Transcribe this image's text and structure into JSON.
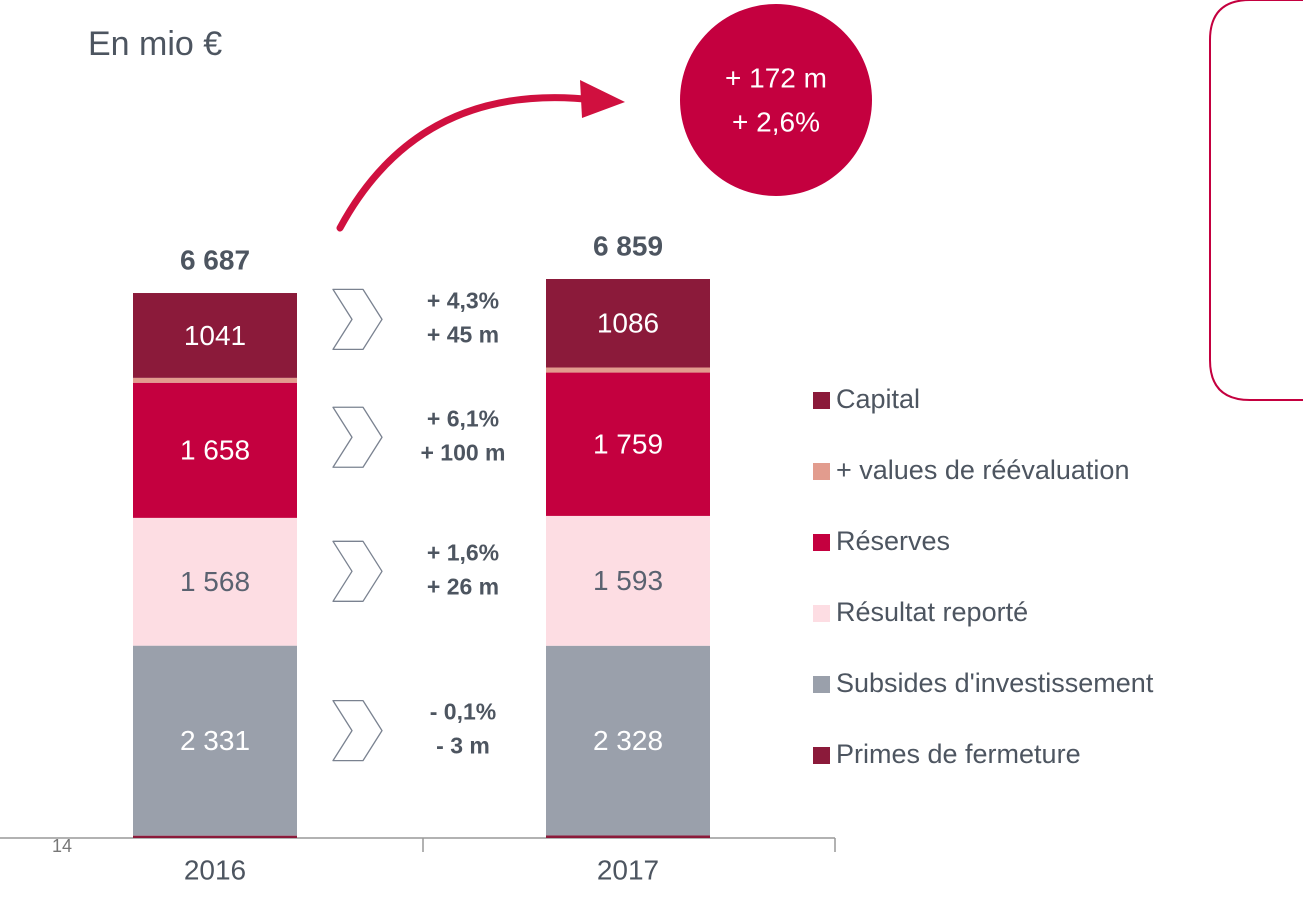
{
  "chart_data": {
    "type": "stacked-bar",
    "subtitle": "En mio €",
    "categories": [
      "2016",
      "2017"
    ],
    "series": [
      {
        "name": "Capital",
        "color": "#8b1a3a",
        "values": [
          1041,
          1086
        ]
      },
      {
        "name": "+ values de réévaluation",
        "color": "#e29c8e",
        "values": [
          60,
          62
        ]
      },
      {
        "name": "Réserves",
        "color": "#c4003f",
        "values": [
          1658,
          1759
        ],
        "value_labels": [
          "1 658",
          "1 759"
        ]
      },
      {
        "name": "Résultat reporté",
        "color": "#fddde3",
        "values": [
          1568,
          1593
        ],
        "value_labels": [
          "1 568",
          "1 593"
        ]
      },
      {
        "name": "Subsides d'investissement",
        "color": "#9aa0ab",
        "values": [
          2331,
          2328
        ],
        "value_labels": [
          "2 331",
          "2 328"
        ]
      },
      {
        "name": "Primes de fermeture",
        "color": "#8b1a3a",
        "values": [
          29,
          31
        ]
      }
    ],
    "totals": [
      6687,
      6859
    ],
    "total_labels": [
      "6 687",
      "6 859"
    ],
    "changes": [
      {
        "pct": "+ 4,3%",
        "abs": "+ 45 m"
      },
      {
        "pct": "+ 6,1%",
        "abs": "+ 100 m"
      },
      {
        "pct": "+ 1,6%",
        "abs": "+ 26 m"
      },
      {
        "pct": "- 0,1%",
        "abs": "- 3 m"
      }
    ],
    "highlight": [
      "+ 172 m",
      "+ 2,6%"
    ],
    "page_number": "14"
  }
}
